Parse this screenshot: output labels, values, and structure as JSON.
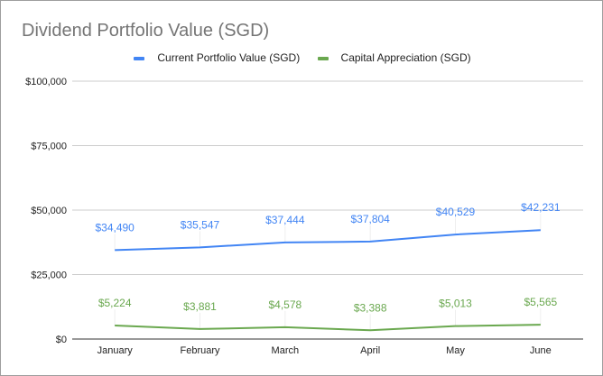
{
  "chart_data": {
    "type": "line",
    "title": "Dividend Portfolio Value (SGD)",
    "categories": [
      "January",
      "February",
      "March",
      "April",
      "May",
      "June"
    ],
    "series": [
      {
        "name": "Current Portfolio Value (SGD)",
        "color": "#4285f4",
        "values": [
          34490,
          35547,
          37444,
          37804,
          40529,
          42231
        ],
        "labels": [
          "$34,490",
          "$35,547",
          "$37,444",
          "$37,804",
          "$40,529",
          "$42,231"
        ]
      },
      {
        "name": "Capital Appreciation (SGD)",
        "color": "#6aa84f",
        "values": [
          5224,
          3881,
          4578,
          3388,
          5013,
          5565
        ],
        "labels": [
          "$5,224",
          "$3,881",
          "$4,578",
          "$3,388",
          "$5,013",
          "$5,565"
        ]
      }
    ],
    "yticks": [
      0,
      25000,
      50000,
      75000,
      100000
    ],
    "ytick_labels": [
      "$0",
      "$25,000",
      "$50,000",
      "$75,000",
      "$100,000"
    ],
    "ylim": [
      0,
      100000
    ],
    "grid": true,
    "legend": "top"
  }
}
